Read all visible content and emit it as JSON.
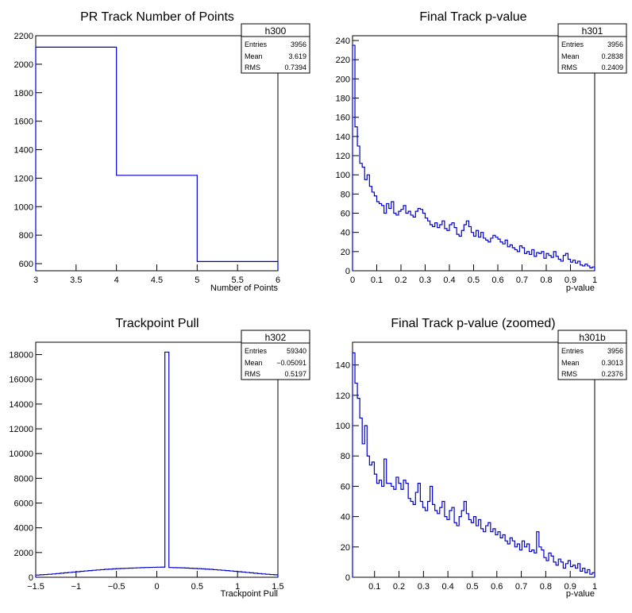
{
  "colors": {
    "line": "#0000cc",
    "axis": "#000000",
    "background": "#ffffff"
  },
  "chart_data": [
    {
      "id": "h300",
      "type": "histogram",
      "title": "PR Track Number of Points",
      "xlabel": "Number of Points",
      "ylabel": "",
      "xlim": [
        3,
        6
      ],
      "ylim": [
        550,
        2200
      ],
      "xticks": [
        3,
        3.5,
        4,
        4.5,
        5,
        5.5,
        6
      ],
      "xtick_labels": [
        "3",
        "3.5",
        "4",
        "4.5",
        "5",
        "5.5",
        "6"
      ],
      "yticks": [
        600,
        800,
        1000,
        1200,
        1400,
        1600,
        1800,
        2000,
        2200
      ],
      "ytick_labels": [
        "600",
        "800",
        "1000",
        "1200",
        "1400",
        "1600",
        "1800",
        "2000",
        "2200"
      ],
      "bin_edges": [
        3,
        4,
        5,
        6
      ],
      "counts": [
        2120,
        1220,
        615
      ],
      "stats": {
        "name": "h300",
        "rows": [
          [
            "Entries",
            "3956"
          ],
          [
            "Mean",
            "3.619"
          ],
          [
            "RMS",
            "0.7394"
          ]
        ]
      }
    },
    {
      "id": "h301",
      "type": "histogram",
      "title": "Final Track p-value",
      "xlabel": "p-value",
      "ylabel": "",
      "xlim": [
        0,
        1
      ],
      "ylim": [
        0,
        245
      ],
      "xticks": [
        0,
        0.1,
        0.2,
        0.3,
        0.4,
        0.5,
        0.6,
        0.7,
        0.8,
        0.9,
        1
      ],
      "xtick_labels": [
        "0",
        "0.1",
        "0.2",
        "0.3",
        "0.4",
        "0.5",
        "0.6",
        "0.7",
        "0.8",
        "0.9",
        "1"
      ],
      "yticks": [
        0,
        20,
        40,
        60,
        80,
        100,
        120,
        140,
        160,
        180,
        200,
        220,
        240
      ],
      "ytick_labels": [
        "0",
        "20",
        "40",
        "60",
        "80",
        "100",
        "120",
        "140",
        "160",
        "180",
        "200",
        "220",
        "240"
      ],
      "bin_edges_range": [
        0,
        1
      ],
      "counts": [
        235,
        150,
        130,
        112,
        108,
        95,
        100,
        88,
        82,
        78,
        72,
        70,
        68,
        60,
        70,
        65,
        72,
        60,
        58,
        62,
        64,
        68,
        60,
        62,
        58,
        56,
        62,
        65,
        64,
        60,
        55,
        52,
        48,
        46,
        50,
        45,
        48,
        52,
        44,
        42,
        48,
        50,
        45,
        38,
        36,
        42,
        48,
        52,
        46,
        40,
        36,
        42,
        35,
        40,
        34,
        32,
        30,
        34,
        37,
        35,
        33,
        30,
        28,
        32,
        25,
        27,
        24,
        22,
        20,
        26,
        24,
        18,
        20,
        17,
        22,
        15,
        19,
        18,
        20,
        13,
        18,
        16,
        14,
        20,
        15,
        12,
        10,
        16,
        18,
        12,
        9,
        11,
        8,
        10,
        6,
        5,
        7,
        5,
        3,
        4
      ],
      "stats": {
        "name": "h301",
        "rows": [
          [
            "Entries",
            "3956"
          ],
          [
            "Mean",
            "0.2838"
          ],
          [
            "RMS",
            "0.2409"
          ]
        ]
      }
    },
    {
      "id": "h302",
      "type": "histogram",
      "title": "Trackpoint Pull",
      "xlabel": "Trackpoint Pull",
      "ylabel": "",
      "xlim": [
        -1.5,
        1.5
      ],
      "ylim": [
        0,
        19000
      ],
      "xticks": [
        -1.5,
        -1,
        -0.5,
        0,
        0.5,
        1,
        1.5
      ],
      "xtick_labels": [
        "−1.5",
        "−1",
        "−0.5",
        "0",
        "0.5",
        "1",
        "1.5"
      ],
      "yticks": [
        0,
        2000,
        4000,
        6000,
        8000,
        10000,
        12000,
        14000,
        16000,
        18000
      ],
      "ytick_labels": [
        "0",
        "2000",
        "4000",
        "6000",
        "8000",
        "10000",
        "12000",
        "14000",
        "16000",
        "18000"
      ],
      "bin_edges_range": [
        -1.5,
        1.5
      ],
      "counts": [
        180,
        200,
        220,
        245,
        270,
        300,
        330,
        360,
        390,
        420,
        450,
        480,
        510,
        540,
        565,
        590,
        615,
        640,
        660,
        680,
        700,
        715,
        725,
        740,
        750,
        765,
        780,
        790,
        800,
        805,
        815,
        820,
        18200,
        790,
        780,
        770,
        760,
        745,
        730,
        715,
        700,
        680,
        660,
        640,
        615,
        590,
        565,
        540,
        510,
        480,
        450,
        420,
        390,
        360,
        330,
        300,
        270,
        245,
        220,
        200
      ],
      "stats": {
        "name": "h302",
        "rows": [
          [
            "Entries",
            "59340"
          ],
          [
            "Mean",
            "−0.05091"
          ],
          [
            "RMS",
            "0.5197"
          ]
        ]
      }
    },
    {
      "id": "h301b",
      "type": "histogram",
      "title": "Final Track p-value (zoomed)",
      "xlabel": "p-value",
      "ylabel": "",
      "xlim": [
        0.01,
        1
      ],
      "ylim": [
        0,
        155
      ],
      "xticks": [
        0.1,
        0.2,
        0.3,
        0.4,
        0.5,
        0.6,
        0.7,
        0.8,
        0.9,
        1
      ],
      "xtick_labels": [
        "0.1",
        "0.2",
        "0.3",
        "0.4",
        "0.5",
        "0.6",
        "0.7",
        "0.8",
        "0.9",
        "1"
      ],
      "yticks": [
        0,
        20,
        40,
        60,
        80,
        100,
        120,
        140
      ],
      "ytick_labels": [
        "0",
        "20",
        "40",
        "60",
        "80",
        "100",
        "120",
        "140"
      ],
      "bin_edges_range": [
        0.01,
        1
      ],
      "counts": [
        148,
        128,
        118,
        105,
        88,
        100,
        80,
        74,
        76,
        68,
        62,
        64,
        60,
        78,
        62,
        62,
        60,
        58,
        66,
        62,
        58,
        64,
        62,
        52,
        50,
        48,
        56,
        62,
        50,
        46,
        44,
        50,
        60,
        48,
        44,
        42,
        46,
        50,
        40,
        38,
        44,
        46,
        36,
        34,
        40,
        44,
        50,
        42,
        38,
        36,
        40,
        34,
        38,
        32,
        30,
        34,
        36,
        30,
        32,
        28,
        30,
        26,
        28,
        24,
        22,
        26,
        24,
        20,
        22,
        18,
        24,
        20,
        22,
        17,
        18,
        16,
        30,
        20,
        18,
        13,
        11,
        16,
        14,
        10,
        8,
        12,
        10,
        6,
        9,
        11,
        7,
        8,
        6,
        9,
        4,
        6,
        3,
        5,
        2,
        3
      ],
      "stats": {
        "name": "h301b",
        "rows": [
          [
            "Entries",
            "3956"
          ],
          [
            "Mean",
            "0.3013"
          ],
          [
            "RMS",
            "0.2376"
          ]
        ]
      }
    }
  ]
}
